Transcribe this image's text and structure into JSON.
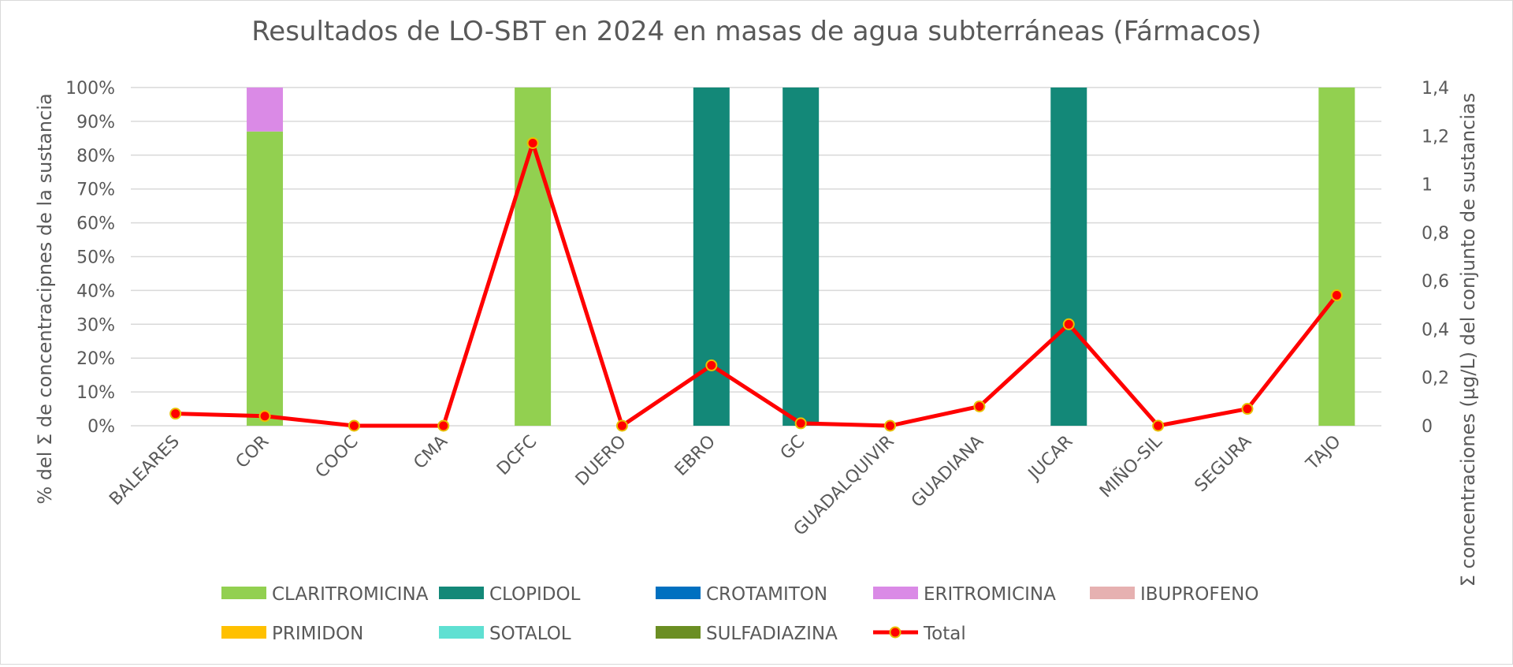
{
  "chart_data": {
    "type": "bar",
    "title": "Resultados de LO-SBT en 2024 en masas de agua subterráneas (Fármacos)",
    "ylabel_left": "% del Σ de concentracipnes de la sustancia",
    "ylabel_right": "Σ concentraciones (µg/L) del conjunto de sustancias",
    "ylim_left": [
      0,
      100
    ],
    "ylim_right": [
      0,
      1.4
    ],
    "yticks_left": [
      "0%",
      "10%",
      "20%",
      "30%",
      "40%",
      "50%",
      "60%",
      "70%",
      "80%",
      "90%",
      "100%"
    ],
    "yticks_right": [
      "0",
      "0,2",
      "0,4",
      "0,6",
      "0,8",
      "1",
      "1,2",
      "1,4"
    ],
    "grid": true,
    "legend_position": "bottom",
    "categories": [
      "BALEARES",
      "COR",
      "COOC",
      "CMA",
      "DCFC",
      "DUERO",
      "EBRO",
      "GC",
      "GUADALQUIVIR",
      "GUADIANA",
      "JUCAR",
      "MIÑO-SIL",
      "SEGURA",
      "TAJO"
    ],
    "series": [
      {
        "name": "CLARITROMICINA",
        "color": "#92d050",
        "values": [
          0,
          87,
          0,
          0,
          100,
          0,
          0,
          0,
          0,
          0,
          0,
          0,
          0,
          100
        ]
      },
      {
        "name": "CLOPIDOL",
        "color": "#138878",
        "values": [
          0,
          0,
          0,
          0,
          0,
          0,
          100,
          100,
          0,
          0,
          100,
          0,
          0,
          0
        ]
      },
      {
        "name": "CROTAMITON",
        "color": "#0070c0",
        "values": [
          0,
          0,
          0,
          0,
          0,
          0,
          0,
          0,
          0,
          0,
          0,
          0,
          0,
          0
        ]
      },
      {
        "name": "ERITROMICINA",
        "color": "#da8ae6",
        "values": [
          0,
          13,
          0,
          0,
          0,
          0,
          0,
          0,
          0,
          0,
          0,
          0,
          0,
          0
        ]
      },
      {
        "name": "IBUPROFENO",
        "color": "#e6b1b1",
        "values": [
          0,
          0,
          0,
          0,
          0,
          0,
          0,
          0,
          0,
          0,
          0,
          0,
          0,
          0
        ]
      },
      {
        "name": "PRIMIDON",
        "color": "#ffc000",
        "values": [
          0,
          0,
          0,
          0,
          0,
          0,
          0,
          0,
          0,
          0,
          0,
          0,
          0,
          0
        ]
      },
      {
        "name": "SOTALOL",
        "color": "#5fe0d2",
        "values": [
          0,
          0,
          0,
          0,
          0,
          0,
          0,
          0,
          0,
          0,
          0,
          0,
          0,
          0
        ]
      },
      {
        "name": "SULFADIAZINA",
        "color": "#6b8e23",
        "values": [
          0,
          0,
          0,
          0,
          0,
          0,
          0,
          0,
          0,
          0,
          0,
          0,
          0,
          0
        ]
      }
    ],
    "line_series": {
      "name": "Total",
      "color": "#ff0000",
      "marker_color": "#e8c000",
      "axis": "right",
      "values": [
        0.05,
        0.04,
        0.0,
        0.0,
        1.17,
        0.0,
        0.25,
        0.01,
        0.0,
        0.08,
        0.42,
        0.0,
        0.07,
        0.54
      ]
    }
  }
}
